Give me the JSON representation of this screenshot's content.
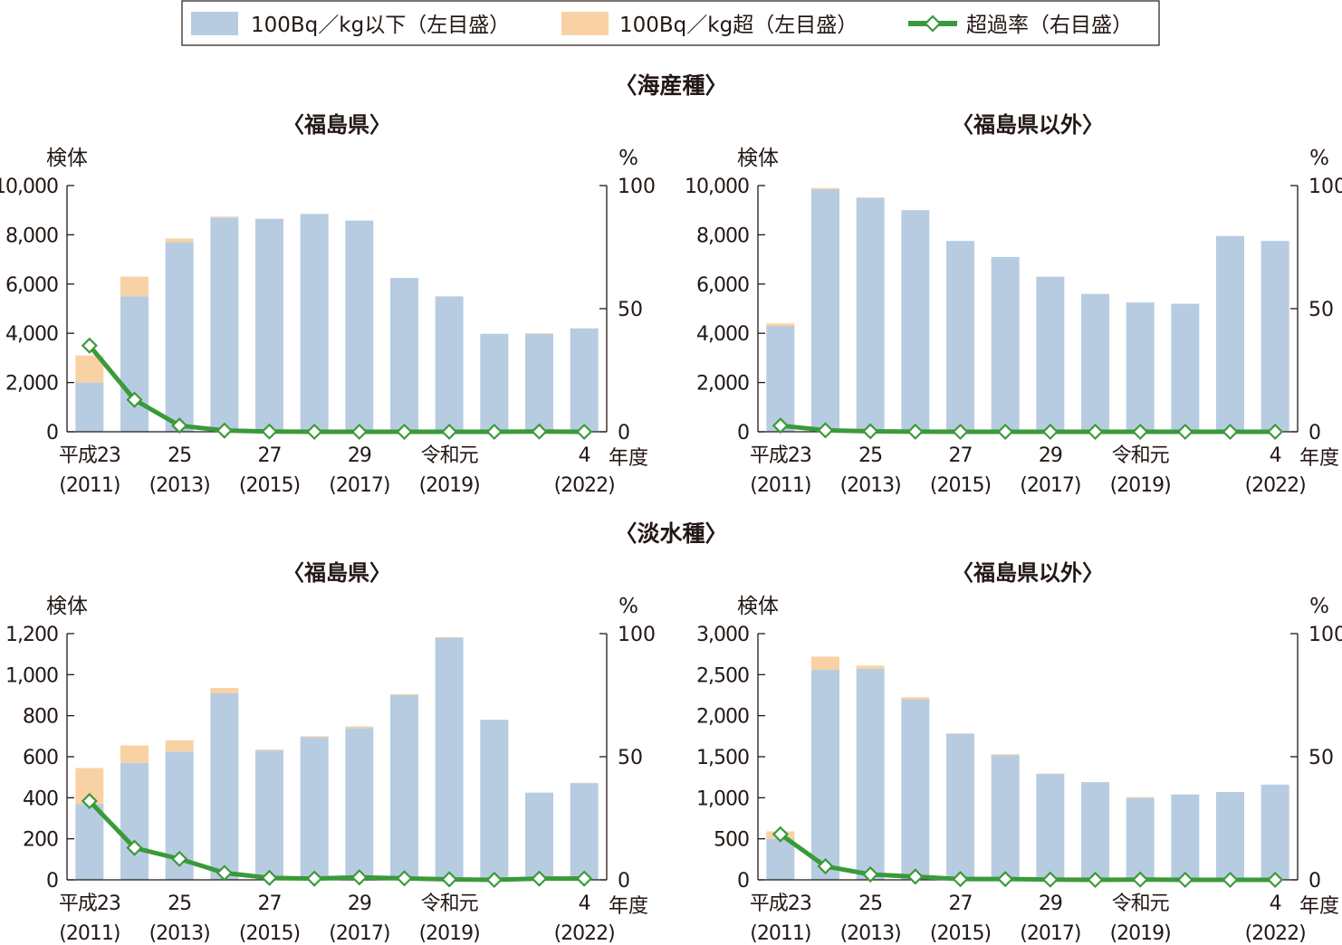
{
  "legend": {
    "items": [
      {
        "label": "100Bq／kg以下（左目盛）",
        "kind": "bar",
        "color": "#b7cce1"
      },
      {
        "label": "100Bq／kg超（左目盛）",
        "kind": "bar",
        "color": "#f8d2a4"
      },
      {
        "label": "超過率（右目盛）",
        "kind": "line",
        "color": "#3a9a3a"
      }
    ]
  },
  "sections": [
    {
      "title": "〈海産種〉"
    },
    {
      "title": "〈淡水種〉"
    }
  ],
  "colors": {
    "below": "#b7cce1",
    "above": "#f8d2a4",
    "line": "#3a9a3a",
    "axis": "#231815"
  },
  "chart_data": [
    {
      "type": "bar",
      "section": "〈海産種〉",
      "title": "〈福島県〉",
      "ylabel": "検体",
      "y2label": "%",
      "xlabel": "年度",
      "ylim": [
        0,
        10000
      ],
      "yticks": [
        "0",
        "2,000",
        "4,000",
        "6,000",
        "8,000",
        "10,000"
      ],
      "y2lim": [
        0,
        100
      ],
      "y2ticks": [
        "0",
        "50",
        "100"
      ],
      "x_ticks": [
        {
          "i": 0,
          "top": "平成23",
          "bottom": "(2011)"
        },
        {
          "i": 2,
          "top": "25",
          "bottom": "(2013)"
        },
        {
          "i": 4,
          "top": "27",
          "bottom": "(2015)"
        },
        {
          "i": 6,
          "top": "29",
          "bottom": "(2017)"
        },
        {
          "i": 8,
          "top": "令和元",
          "bottom": "(2019)"
        },
        {
          "i": 11,
          "top": "4",
          "bottom": "(2022)"
        }
      ],
      "series": [
        {
          "name": "100Bq／kg以下（左目盛）",
          "values": [
            2000,
            5500,
            7700,
            8700,
            8650,
            8850,
            8580,
            6250,
            5500,
            3980,
            3980,
            4200
          ]
        },
        {
          "name": "100Bq／kg超（左目盛）",
          "values": [
            1100,
            800,
            150,
            40,
            5,
            2,
            2,
            0,
            0,
            0,
            20,
            0
          ]
        },
        {
          "name": "超過率（右目盛）",
          "axis": "right",
          "values": [
            35,
            13,
            2.5,
            0.5,
            0.1,
            0,
            0,
            0,
            0,
            0,
            0.1,
            0
          ]
        }
      ]
    },
    {
      "type": "bar",
      "section": "〈海産種〉",
      "title": "〈福島県以外〉",
      "ylabel": "検体",
      "y2label": "%",
      "xlabel": "年度",
      "ylim": [
        0,
        10000
      ],
      "yticks": [
        "0",
        "2,000",
        "4,000",
        "6,000",
        "8,000",
        "10,000"
      ],
      "y2lim": [
        0,
        100
      ],
      "y2ticks": [
        "0",
        "50",
        "100"
      ],
      "x_ticks": [
        {
          "i": 0,
          "top": "平成23",
          "bottom": "(2011)"
        },
        {
          "i": 2,
          "top": "25",
          "bottom": "(2013)"
        },
        {
          "i": 4,
          "top": "27",
          "bottom": "(2015)"
        },
        {
          "i": 6,
          "top": "29",
          "bottom": "(2017)"
        },
        {
          "i": 8,
          "top": "令和元",
          "bottom": "(2019)"
        },
        {
          "i": 11,
          "top": "4",
          "bottom": "(2022)"
        }
      ],
      "series": [
        {
          "name": "100Bq／kg以下（左目盛）",
          "values": [
            4300,
            9850,
            9500,
            9000,
            7750,
            7100,
            6300,
            5600,
            5250,
            5200,
            7950,
            7750
          ]
        },
        {
          "name": "100Bq／kg超（左目盛）",
          "values": [
            100,
            50,
            20,
            5,
            0,
            0,
            0,
            0,
            0,
            0,
            0,
            0
          ]
        },
        {
          "name": "超過率（右目盛）",
          "axis": "right",
          "values": [
            2.5,
            0.6,
            0.2,
            0.05,
            0,
            0,
            0,
            0,
            0,
            0,
            0,
            0
          ]
        }
      ]
    },
    {
      "type": "bar",
      "section": "〈淡水種〉",
      "title": "〈福島県〉",
      "ylabel": "検体",
      "y2label": "%",
      "xlabel": "年度",
      "ylim": [
        0,
        1200
      ],
      "yticks": [
        "0",
        "200",
        "400",
        "600",
        "800",
        "1,000",
        "1,200"
      ],
      "y2lim": [
        0,
        100
      ],
      "y2ticks": [
        "0",
        "50",
        "100"
      ],
      "x_ticks": [
        {
          "i": 0,
          "top": "平成23",
          "bottom": "(2011)"
        },
        {
          "i": 2,
          "top": "25",
          "bottom": "(2013)"
        },
        {
          "i": 4,
          "top": "27",
          "bottom": "(2015)"
        },
        {
          "i": 6,
          "top": "29",
          "bottom": "(2017)"
        },
        {
          "i": 8,
          "top": "令和元",
          "bottom": "(2019)"
        },
        {
          "i": 11,
          "top": "4",
          "bottom": "(2022)"
        }
      ],
      "series": [
        {
          "name": "100Bq／kg以下（左目盛）",
          "values": [
            370,
            570,
            625,
            910,
            630,
            695,
            740,
            900,
            1180,
            780,
            425,
            470
          ]
        },
        {
          "name": "100Bq／kg超（左目盛）",
          "values": [
            175,
            85,
            55,
            25,
            5,
            5,
            8,
            5,
            3,
            0,
            0,
            3
          ]
        },
        {
          "name": "超過率（右目盛）",
          "axis": "right",
          "values": [
            32,
            13,
            8.5,
            2.8,
            0.8,
            0.5,
            1.0,
            0.6,
            0.2,
            0,
            0.5,
            0.5
          ]
        }
      ]
    },
    {
      "type": "bar",
      "section": "〈淡水種〉",
      "title": "〈福島県以外〉",
      "ylabel": "検体",
      "y2label": "%",
      "xlabel": "年度",
      "ylim": [
        0,
        3000
      ],
      "yticks": [
        "0",
        "500",
        "1,000",
        "1,500",
        "2,000",
        "2,500",
        "3,000"
      ],
      "y2lim": [
        0,
        100
      ],
      "y2ticks": [
        "0",
        "50",
        "100"
      ],
      "x_ticks": [
        {
          "i": 0,
          "top": "平成23",
          "bottom": "(2011)"
        },
        {
          "i": 2,
          "top": "25",
          "bottom": "(2013)"
        },
        {
          "i": 4,
          "top": "27",
          "bottom": "(2015)"
        },
        {
          "i": 6,
          "top": "29",
          "bottom": "(2017)"
        },
        {
          "i": 8,
          "top": "令和元",
          "bottom": "(2019)"
        },
        {
          "i": 11,
          "top": "4",
          "bottom": "(2022)"
        }
      ],
      "series": [
        {
          "name": "100Bq／kg以下（左目盛）",
          "values": [
            500,
            2560,
            2570,
            2200,
            1780,
            1520,
            1290,
            1190,
            1000,
            1040,
            1070,
            1160
          ]
        },
        {
          "name": "100Bq／kg超（左目盛）",
          "values": [
            90,
            160,
            40,
            25,
            5,
            10,
            5,
            0,
            8,
            0,
            0,
            0
          ]
        },
        {
          "name": "超過率（右目盛）",
          "axis": "right",
          "values": [
            18.5,
            5.5,
            2.2,
            1.3,
            0.3,
            0.3,
            0.1,
            0,
            0.1,
            0,
            0,
            0
          ]
        }
      ]
    }
  ]
}
